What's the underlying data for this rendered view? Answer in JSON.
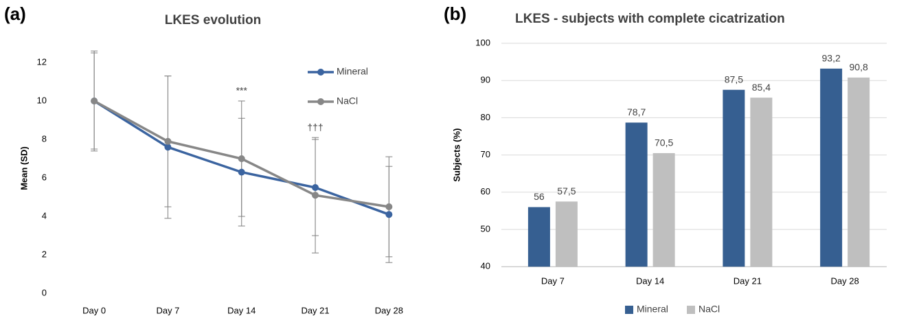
{
  "chart_data": [
    {
      "type": "line",
      "panel_label": "(a)",
      "title": "LKES evolution",
      "ylabel": "Mean (SD)",
      "categories": [
        "Day 0",
        "Day 7",
        "Day 14",
        "Day 21",
        "Day 28"
      ],
      "series": [
        {
          "name": "Mineral",
          "color": "#3b64a0",
          "values": [
            10,
            7.6,
            6.3,
            5.5,
            4.1
          ],
          "errors": [
            2.5,
            3.7,
            2.8,
            2.5,
            2.5
          ]
        },
        {
          "name": "NaCl",
          "color": "#878787",
          "values": [
            10,
            7.9,
            7.0,
            5.1,
            4.5
          ],
          "errors": [
            2.6,
            3.4,
            3.0,
            3.0,
            2.6
          ]
        }
      ],
      "annotations": [
        {
          "text": "***",
          "x": "Day 14"
        },
        {
          "text": "†††",
          "x": "Day 21"
        }
      ],
      "ylim": [
        0,
        13
      ],
      "yticks": [
        0,
        2,
        4,
        6,
        8,
        10,
        12
      ],
      "grid": false,
      "legend": "upper right"
    },
    {
      "type": "bar",
      "panel_label": "(b)",
      "title": "LKES - subjects with complete cicatrization",
      "ylabel": "Subjects (%)",
      "categories": [
        "Day 7",
        "Day 14",
        "Day 21",
        "Day 28"
      ],
      "series": [
        {
          "name": "Mineral",
          "color": "#365f91",
          "values": [
            56,
            78.7,
            87.5,
            93.2
          ],
          "value_labels": [
            "56",
            "78,7",
            "87,5",
            "93,2"
          ]
        },
        {
          "name": "NaCl",
          "color": "#bfbfbf",
          "values": [
            57.5,
            70.5,
            85.4,
            90.8
          ],
          "value_labels": [
            "57,5",
            "70,5",
            "85,4",
            "90,8"
          ]
        }
      ],
      "ylim": [
        40,
        100
      ],
      "yticks": [
        40,
        50,
        60,
        70,
        80,
        90,
        100
      ],
      "grid": true,
      "legend": "bottom"
    }
  ]
}
